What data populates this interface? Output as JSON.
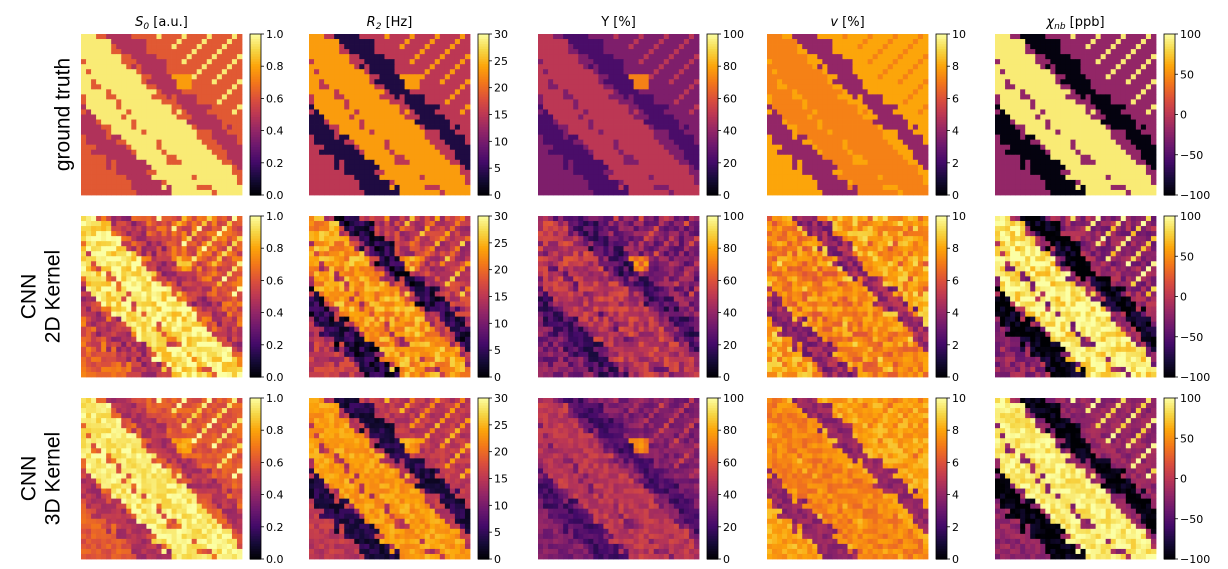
{
  "chart_data": {
    "type": "heatmap",
    "colormap": "inferno",
    "row_labels": [
      [
        "ground truth"
      ],
      [
        "CNN",
        "2D Kernel"
      ],
      [
        "CNN",
        "3D Kernel"
      ]
    ],
    "columns": [
      {
        "title_parts": [
          {
            "t": "S",
            "style": "italic"
          },
          {
            "t": "0",
            "style": "sub"
          },
          {
            "t": " [a.u.]",
            "style": "normal"
          }
        ],
        "clim": [
          0.0,
          1.0
        ],
        "ticks": [
          0.0,
          0.2,
          0.4,
          0.6,
          0.8,
          1.0
        ],
        "tick_labels": [
          "0.0",
          "0.2",
          "0.4",
          "0.6",
          "0.8",
          "1.0"
        ]
      },
      {
        "title_parts": [
          {
            "t": "R",
            "style": "italic"
          },
          {
            "t": "2",
            "style": "sub"
          },
          {
            "t": " [Hz]",
            "style": "normal"
          }
        ],
        "clim": [
          0,
          30
        ],
        "ticks": [
          0,
          5,
          10,
          15,
          20,
          25,
          30
        ],
        "tick_labels": [
          "0",
          "5",
          "10",
          "15",
          "20",
          "25",
          "30"
        ]
      },
      {
        "title_parts": [
          {
            "t": "Y [%]",
            "style": "normal"
          }
        ],
        "clim": [
          0,
          100
        ],
        "ticks": [
          0,
          20,
          40,
          60,
          80,
          100
        ],
        "tick_labels": [
          "0",
          "20",
          "40",
          "60",
          "80",
          "100"
        ]
      },
      {
        "title_parts": [
          {
            "t": "v",
            "style": "italic"
          },
          {
            "t": " [%]",
            "style": "normal"
          }
        ],
        "clim": [
          0,
          10
        ],
        "ticks": [
          0,
          2,
          4,
          6,
          8,
          10
        ],
        "tick_labels": [
          "0",
          "2",
          "4",
          "6",
          "8",
          "10"
        ]
      },
      {
        "title_parts": [
          {
            "t": "χ",
            "style": "italic"
          },
          {
            "t": "nb",
            "style": "sub"
          },
          {
            "t": " [ppb]",
            "style": "normal"
          }
        ],
        "clim": [
          -100,
          100
        ],
        "ticks": [
          -100,
          -50,
          0,
          50,
          100
        ],
        "tick_labels": [
          "−100",
          "−50",
          "0",
          "50",
          "100"
        ]
      }
    ],
    "colors": {
      "S0": {
        "vessel": 0.95,
        "bg": 0.62,
        "dark": 0.47,
        "vein": 0.78
      },
      "R2": {
        "vessel": 0.78,
        "bg": 0.5,
        "dark": 0.12,
        "vein": 0.78
      },
      "Y": {
        "vessel": 0.5,
        "bg": 0.35,
        "dark": 0.22,
        "vein": 0.72
      },
      "v": {
        "vessel": 0.72,
        "bg": 0.8,
        "dark": 0.4,
        "vein": 0.8
      },
      "chi": {
        "vessel": 0.95,
        "bg": 0.4,
        "dark": 0.02,
        "vein": 0.4
      }
    }
  }
}
